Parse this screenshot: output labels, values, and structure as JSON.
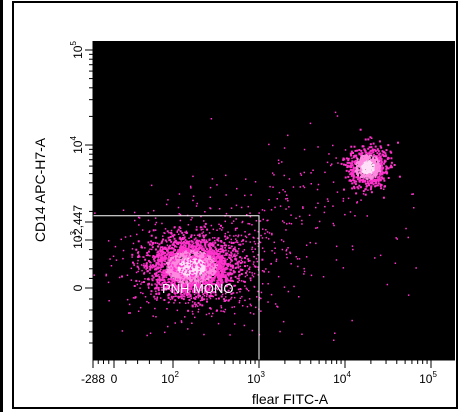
{
  "chart_data": {
    "type": "scatter",
    "subtype": "flow-cytometry-density-dot-plot",
    "xlabel": "flear FITC-A",
    "ylabel": "CD14 APC-H7-A",
    "x_scale": "biexponential",
    "y_scale": "biexponential",
    "x_ticks": [
      {
        "value": -288,
        "label": "-288"
      },
      {
        "value": 0,
        "label": "0"
      },
      {
        "value": 100,
        "label": "10",
        "exp": "2"
      },
      {
        "value": 1000,
        "label": "10",
        "exp": "3"
      },
      {
        "value": 10000,
        "label": "10",
        "exp": "4"
      },
      {
        "value": 100000,
        "label": "10",
        "exp": "5"
      }
    ],
    "y_ticks": [
      {
        "value": -2447,
        "label": "-2,447"
      },
      {
        "value": 0,
        "label": "0"
      },
      {
        "value": 1000,
        "label": "10",
        "exp": "3"
      },
      {
        "value": 10000,
        "label": "10",
        "exp": "4"
      },
      {
        "value": 100000,
        "label": "10",
        "exp": "5"
      }
    ],
    "xlim": [
      -288,
      262144
    ],
    "ylim": [
      -2447,
      262144
    ],
    "background_color": "#000000",
    "point_color": "#ff33cc",
    "dense_color": "#ffe0f8",
    "populations": [
      {
        "x_center": 160,
        "y_center": 450,
        "relative_size": "large",
        "density": "high"
      },
      {
        "x_center": 18000,
        "y_center": 6000,
        "relative_size": "small",
        "density": "high"
      }
    ],
    "gates": [
      {
        "name": "PNH MONO",
        "x_range": [
          -288,
          1000
        ],
        "y_range": [
          -2447,
          1800
        ]
      }
    ]
  }
}
